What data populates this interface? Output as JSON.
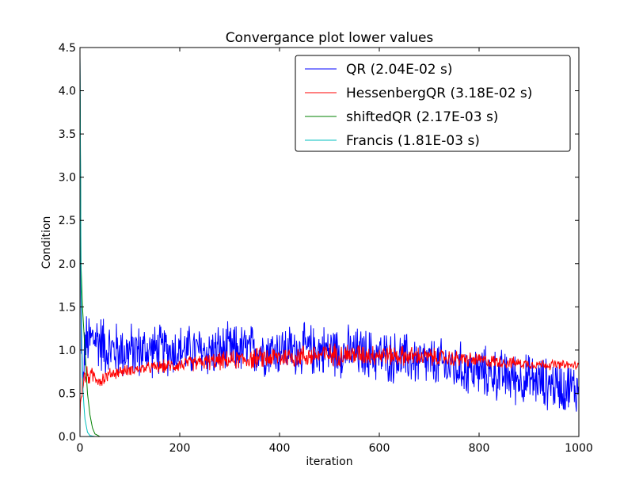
{
  "chart_data": {
    "type": "line",
    "title": "Convergance plot lower values",
    "xlabel": "iteration",
    "ylabel": "Condition",
    "xlim": [
      0,
      1000
    ],
    "ylim": [
      0.0,
      4.5
    ],
    "xticks": [
      0,
      200,
      400,
      600,
      800,
      1000
    ],
    "yticks": [
      0.0,
      0.5,
      1.0,
      1.5,
      2.0,
      2.5,
      3.0,
      3.5,
      4.0,
      4.5
    ],
    "ytick_labels": [
      "0.0",
      "0.5",
      "1.0",
      "1.5",
      "2.0",
      "2.5",
      "3.0",
      "3.5",
      "4.0",
      "4.5"
    ],
    "grid": false,
    "legend_position": "top-right",
    "series": [
      {
        "name": "QR (2.04E-02 s)",
        "color": "#0000ff",
        "x": [
          0,
          2,
          5,
          10,
          20,
          30,
          40,
          50,
          60,
          80,
          100,
          150,
          200,
          250,
          300,
          350,
          400,
          450,
          500,
          550,
          600,
          650,
          700,
          750,
          800,
          850,
          900,
          950,
          1000
        ],
        "y": [
          4.4,
          1.5,
          0.5,
          1.05,
          1.1,
          1.15,
          1.1,
          1.05,
          1.0,
          1.0,
          0.98,
          1.0,
          1.0,
          0.98,
          1.0,
          1.0,
          1.0,
          1.0,
          1.0,
          0.97,
          0.93,
          0.9,
          0.85,
          0.8,
          0.75,
          0.7,
          0.65,
          0.6,
          0.55
        ],
        "noise": [
          0,
          0.25,
          0.2,
          0.3,
          0.3,
          0.3,
          0.3,
          0.3,
          0.28,
          0.28,
          0.28,
          0.25,
          0.25,
          0.25,
          0.25,
          0.25,
          0.25,
          0.25,
          0.25,
          0.25,
          0.25,
          0.25,
          0.25,
          0.25,
          0.25,
          0.25,
          0.25,
          0.25,
          0.25
        ]
      },
      {
        "name": "HessenbergQR (3.18E-02 s)",
        "color": "#ff0000",
        "x": [
          0,
          2,
          5,
          10,
          20,
          30,
          40,
          50,
          60,
          80,
          100,
          150,
          200,
          250,
          300,
          350,
          400,
          450,
          500,
          550,
          600,
          650,
          700,
          750,
          800,
          850,
          900,
          950,
          1000
        ],
        "y": [
          0.2,
          0.5,
          0.6,
          0.7,
          0.7,
          0.7,
          0.65,
          0.68,
          0.72,
          0.75,
          0.77,
          0.8,
          0.83,
          0.86,
          0.88,
          0.9,
          0.92,
          0.93,
          0.95,
          0.95,
          0.95,
          0.93,
          0.92,
          0.9,
          0.88,
          0.86,
          0.84,
          0.83,
          0.82
        ],
        "noise": [
          0,
          0.15,
          0.12,
          0.1,
          0.08,
          0.08,
          0.08,
          0.07,
          0.06,
          0.06,
          0.05,
          0.06,
          0.07,
          0.08,
          0.09,
          0.1,
          0.11,
          0.11,
          0.11,
          0.11,
          0.1,
          0.1,
          0.09,
          0.08,
          0.07,
          0.06,
          0.05,
          0.05,
          0.04
        ]
      },
      {
        "name": "shiftedQR (2.17E-03 s)",
        "color": "#008000",
        "x": [
          0,
          2,
          5,
          8,
          10,
          12,
          15,
          20,
          25,
          30,
          40,
          1000
        ],
        "y": [
          4.4,
          2.0,
          1.5,
          1.2,
          1.0,
          0.8,
          0.5,
          0.25,
          0.1,
          0.03,
          0.0,
          0.0
        ],
        "noise": [
          0,
          0,
          0,
          0,
          0,
          0,
          0,
          0,
          0,
          0,
          0,
          0
        ]
      },
      {
        "name": "Francis (1.81E-03 s)",
        "color": "#00bfbf",
        "x": [
          0,
          2,
          4,
          6,
          8,
          10,
          15,
          20,
          30,
          1000
        ],
        "y": [
          4.4,
          1.8,
          1.0,
          0.55,
          0.35,
          0.2,
          0.05,
          0.01,
          0.0,
          0.0
        ],
        "noise": [
          0,
          0,
          0,
          0,
          0,
          0,
          0,
          0,
          0,
          0
        ]
      }
    ]
  }
}
